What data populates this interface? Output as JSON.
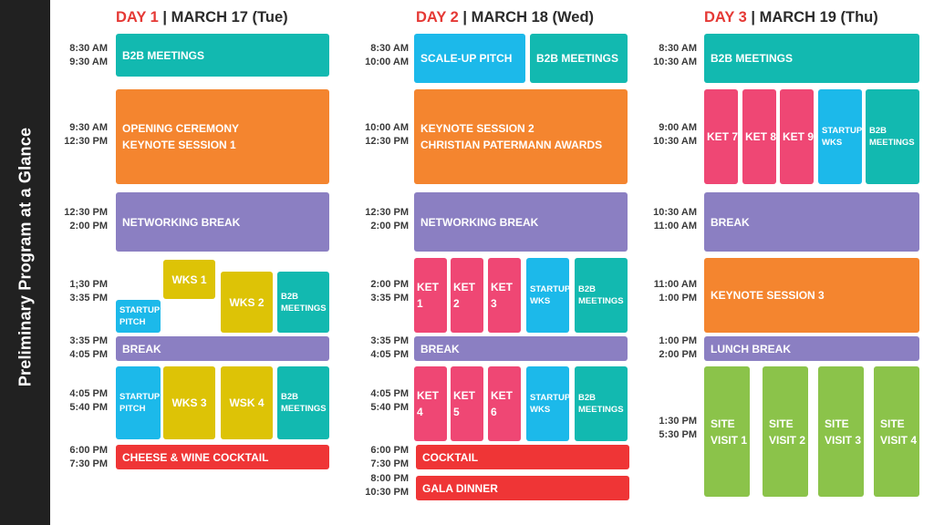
{
  "sidebar": {
    "title": "Preliminary Program at a Glance"
  },
  "days": [
    {
      "label": "DAY 1",
      "date": " | MARCH 17 (Tue)"
    },
    {
      "label": "DAY 2",
      "date": " | MARCH 18 (Wed)"
    },
    {
      "label": "DAY 3",
      "date": " | MARCH 19 (Thu)"
    }
  ],
  "day1": {
    "times": [
      {
        "start": "8:30 AM",
        "end": "9:30 AM"
      },
      {
        "start": "9:30 AM",
        "end": "12:30 PM"
      },
      {
        "start": "12:30 PM",
        "end": "2:00 PM"
      },
      {
        "start": "1;30 PM",
        "end": "3:35 PM"
      },
      {
        "start": "3:35 PM",
        "end": "4:05 PM"
      },
      {
        "start": "4:05 PM",
        "end": "5:40 PM"
      },
      {
        "start": "6:00 PM",
        "end": "7:30 PM"
      }
    ],
    "b2b_meetings": "B2B MEETINGS",
    "opening_ceremony": "OPENING CEREMONY",
    "keynote_session_1": "KEYNOTE SESSION 1",
    "networking_break": "NETWORKING BREAK",
    "wks_1": "WKS 1",
    "wks_2": "WKS 2",
    "startup_pitch_1": {
      "line1": "STARTUP",
      "line2": "PITCH"
    },
    "b2b_meetings_2": {
      "line1": "B2B",
      "line2": "MEETINGS"
    },
    "break": "BREAK",
    "startup_pitch_2": {
      "line1": "STARTUP",
      "line2": "PITCH"
    },
    "wks_3": "WKS 3",
    "wsk_4": "WSK 4",
    "b2b_meetings_3": {
      "line1": "B2B",
      "line2": "MEETINGS"
    },
    "cheese_wine_cocktail": "CHEESE & WINE COCKTAIL"
  },
  "day2": {
    "times": [
      {
        "start": "8:30 AM",
        "end": "10:00 AM"
      },
      {
        "start": "10:00 AM",
        "end": "12:30 PM"
      },
      {
        "start": "12:30 PM",
        "end": "2:00 PM"
      },
      {
        "start": "2:00 PM",
        "end": "3:35 PM"
      },
      {
        "start": "3:35 PM",
        "end": "4:05 PM"
      },
      {
        "start": "4:05 PM",
        "end": "5:40 PM"
      },
      {
        "start": "6:00 PM",
        "end": "7:30 PM"
      },
      {
        "start": "8:00 PM",
        "end": "10:30 PM"
      }
    ],
    "scale_up_pitch": "SCALE-UP PITCH",
    "b2b_meetings": "B2B MEETINGS",
    "keynote_session_2": "KEYNOTE SESSION 2",
    "patermann_awards": "CHRISTIAN PATERMANN AWARDS",
    "networking_break": "NETWORKING BREAK",
    "ket_1": "KET 1",
    "ket_2": "KET 2",
    "ket_3": "KET 3",
    "startup_wks_1": {
      "line1": "STARTUP",
      "line2": "WKS"
    },
    "b2b_meetings_2": {
      "line1": "B2B",
      "line2": "MEETINGS"
    },
    "break": "BREAK",
    "ket_4": "KET 4",
    "ket_5": "KET 5",
    "ket_6": "KET 6",
    "startup_wks_2": {
      "line1": "STARTUP",
      "line2": "WKS"
    },
    "b2b_meetings_3": {
      "line1": "B2B",
      "line2": "MEETINGS"
    },
    "cocktail": "COCKTAIL",
    "gala_dinner": "GALA DINNER"
  },
  "day3": {
    "times": [
      {
        "start": "8:30 AM",
        "end": "10:30 AM"
      },
      {
        "start": "9:00 AM",
        "end": "10:30 AM"
      },
      {
        "start": "10:30 AM",
        "end": "11:00 AM"
      },
      {
        "start": "11:00 AM",
        "end": "1:00 PM"
      },
      {
        "start": "1:00 PM",
        "end": "2:00 PM"
      },
      {
        "start": "1:30 PM",
        "end": "5:30 PM"
      }
    ],
    "b2b_meetings": "B2B MEETINGS",
    "ket_7": "KET 7",
    "ket_8": "KET 8",
    "ket_9": "KET 9",
    "startup_wks": {
      "line1": "STARTUP",
      "line2": "WKS"
    },
    "b2b_meetings_2": {
      "line1": "B2B",
      "line2": "MEETINGS"
    },
    "break": "BREAK",
    "keynote_session_3": "KEYNOTE SESSION 3",
    "lunch_break": "LUNCH BREAK",
    "site_visit_1": {
      "line1": "SITE",
      "line2": "VISIT 1"
    },
    "site_visit_2": {
      "line1": "SITE",
      "line2": "VISIT 2"
    },
    "site_visit_3": {
      "line1": "SITE",
      "line2": "VISIT 3"
    },
    "site_visit_4": {
      "line1": "SITE",
      "line2": "VISIT 4"
    }
  },
  "colors": {
    "sidebar": "#212121",
    "day_label": "#e53935",
    "b2b_teal": "#12b9b0",
    "keynote_orange": "#f4852f",
    "break_purple": "#8b7fc2",
    "workshop_yellow": "#ddc306",
    "startup_cyan": "#1cb9ea",
    "ket_pink": "#ef4774",
    "evening_red": "#ef3536",
    "site_visit_green": "#8bc34a"
  }
}
